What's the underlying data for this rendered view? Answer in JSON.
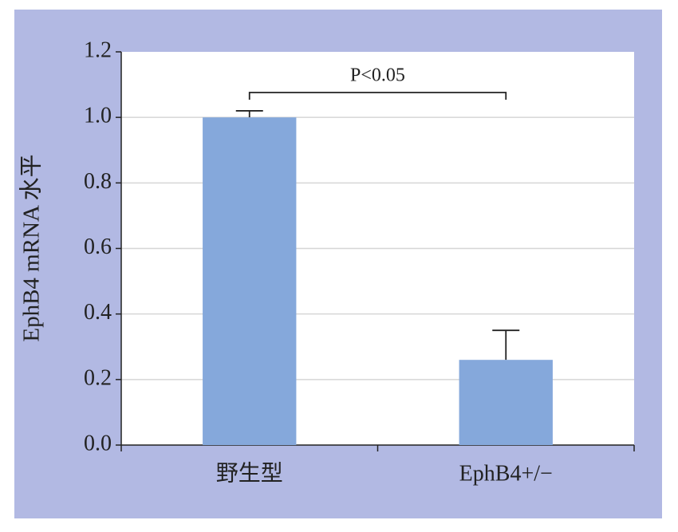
{
  "chart_data": {
    "type": "bar",
    "y_label": "EphB4 mRNA 水平",
    "categories": [
      "野生型",
      "EphB4+/−"
    ],
    "values": [
      1.0,
      0.26
    ],
    "errors": [
      0.02,
      0.09
    ],
    "color": "#85a8db",
    "ylim": [
      0,
      1.2
    ],
    "yticks": [
      {
        "value": 0,
        "label": "0.0"
      },
      0.2,
      0.4,
      0.6,
      0.8,
      {
        "value": 1,
        "label": "1.0"
      },
      1.2
    ],
    "grid": true,
    "annotation": "P<0.05"
  }
}
